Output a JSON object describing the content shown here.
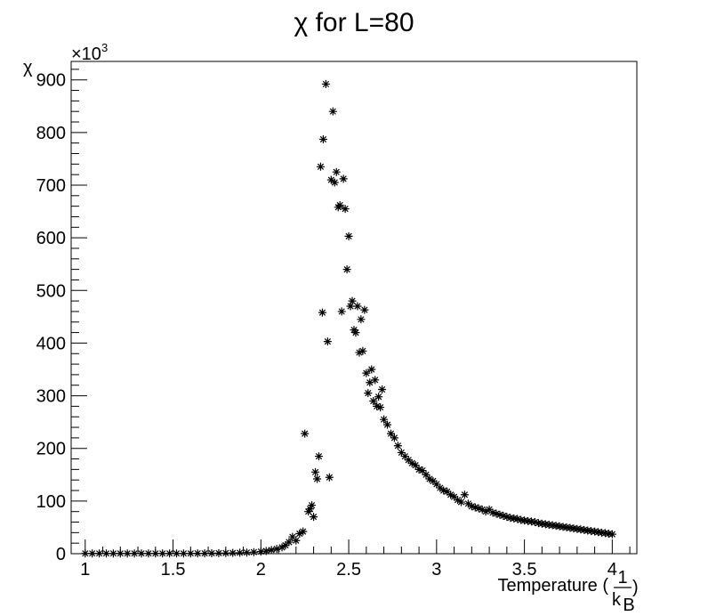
{
  "chart_data": {
    "type": "scatter",
    "title": "χ for L=80",
    "xlabel": "Temperature (",
    "xlabel_fraction": {
      "numerator": "1",
      "denominator": "k",
      "subscript": "B"
    },
    "xlabel_close": ")",
    "ylabel": "χ",
    "y_multiplier": "×10",
    "y_multiplier_exponent": "3",
    "xlim": [
      0.92,
      4.14
    ],
    "ylim": [
      0,
      935
    ],
    "x_ticks": [
      1,
      1.5,
      2,
      2.5,
      3,
      3.5,
      4
    ],
    "x_tick_labels": [
      "1",
      "1.5",
      "2",
      "2.5",
      "3",
      "3.5",
      "4"
    ],
    "y_ticks": [
      0,
      100,
      200,
      300,
      400,
      500,
      600,
      700,
      800,
      900
    ],
    "y_tick_labels": [
      "0",
      "100",
      "200",
      "300",
      "400",
      "500",
      "600",
      "700",
      "800",
      "900"
    ],
    "grid": false,
    "marker": "asterisk",
    "marker_color": "#000000",
    "series": [
      {
        "points": [
          [
            1.0,
            0.5
          ],
          [
            1.04,
            0.5
          ],
          [
            1.08,
            0.5
          ],
          [
            1.12,
            0.5
          ],
          [
            1.16,
            0.5
          ],
          [
            1.2,
            0.5
          ],
          [
            1.24,
            0.5
          ],
          [
            1.28,
            0.5
          ],
          [
            1.32,
            0.5
          ],
          [
            1.36,
            0.5
          ],
          [
            1.4,
            0.5
          ],
          [
            1.44,
            0.5
          ],
          [
            1.48,
            0.5
          ],
          [
            1.52,
            0.5
          ],
          [
            1.56,
            0.5
          ],
          [
            1.6,
            0.5
          ],
          [
            1.64,
            0.6
          ],
          [
            1.68,
            0.7
          ],
          [
            1.72,
            0.8
          ],
          [
            1.76,
            1.0
          ],
          [
            1.8,
            1.2
          ],
          [
            1.84,
            1.5
          ],
          [
            1.88,
            1.8
          ],
          [
            1.92,
            2.2
          ],
          [
            1.96,
            3
          ],
          [
            2.0,
            4
          ],
          [
            2.03,
            5
          ],
          [
            2.06,
            7
          ],
          [
            2.09,
            9
          ],
          [
            2.12,
            12
          ],
          [
            2.14,
            16
          ],
          [
            2.16,
            22
          ],
          [
            2.18,
            32
          ],
          [
            2.2,
            25
          ],
          [
            2.22,
            38
          ],
          [
            2.24,
            42
          ],
          [
            2.25,
            228
          ],
          [
            2.27,
            80
          ],
          [
            2.28,
            85
          ],
          [
            2.29,
            92
          ],
          [
            2.3,
            70
          ],
          [
            2.31,
            155
          ],
          [
            2.32,
            142
          ],
          [
            2.33,
            185
          ],
          [
            2.34,
            735
          ],
          [
            2.35,
            458
          ],
          [
            2.355,
            787
          ],
          [
            2.37,
            892
          ],
          [
            2.38,
            403
          ],
          [
            2.39,
            145
          ],
          [
            2.4,
            710
          ],
          [
            2.41,
            840
          ],
          [
            2.42,
            705
          ],
          [
            2.43,
            725
          ],
          [
            2.44,
            658
          ],
          [
            2.45,
            662
          ],
          [
            2.46,
            460
          ],
          [
            2.47,
            712
          ],
          [
            2.48,
            655
          ],
          [
            2.49,
            540
          ],
          [
            2.5,
            603
          ],
          [
            2.51,
            470
          ],
          [
            2.52,
            480
          ],
          [
            2.53,
            425
          ],
          [
            2.54,
            420
          ],
          [
            2.55,
            470
          ],
          [
            2.56,
            382
          ],
          [
            2.57,
            445
          ],
          [
            2.58,
            385
          ],
          [
            2.59,
            463
          ],
          [
            2.6,
            343
          ],
          [
            2.61,
            305
          ],
          [
            2.62,
            325
          ],
          [
            2.63,
            350
          ],
          [
            2.64,
            290
          ],
          [
            2.65,
            330
          ],
          [
            2.66,
            280
          ],
          [
            2.67,
            298
          ],
          [
            2.68,
            278
          ],
          [
            2.69,
            312
          ],
          [
            2.7,
            255
          ],
          [
            2.72,
            245
          ],
          [
            2.74,
            228
          ],
          [
            2.76,
            220
          ],
          [
            2.78,
            205
          ],
          [
            2.8,
            192
          ],
          [
            2.82,
            185
          ],
          [
            2.84,
            178
          ],
          [
            2.86,
            172
          ],
          [
            2.88,
            168
          ],
          [
            2.9,
            160
          ],
          [
            2.92,
            158
          ],
          [
            2.94,
            150
          ],
          [
            2.96,
            142
          ],
          [
            2.98,
            138
          ],
          [
            3.0,
            132
          ],
          [
            3.02,
            125
          ],
          [
            3.04,
            120
          ],
          [
            3.06,
            118
          ],
          [
            3.08,
            112
          ],
          [
            3.1,
            108
          ],
          [
            3.12,
            102
          ],
          [
            3.14,
            98
          ],
          [
            3.16,
            112
          ],
          [
            3.18,
            95
          ],
          [
            3.2,
            90
          ],
          [
            3.22,
            88
          ],
          [
            3.24,
            86
          ],
          [
            3.26,
            84
          ],
          [
            3.28,
            80
          ],
          [
            3.3,
            84
          ],
          [
            3.32,
            78
          ],
          [
            3.34,
            76
          ],
          [
            3.36,
            74
          ],
          [
            3.38,
            72
          ],
          [
            3.4,
            70
          ],
          [
            3.42,
            68
          ],
          [
            3.44,
            67
          ],
          [
            3.46,
            66
          ],
          [
            3.48,
            64
          ],
          [
            3.5,
            63
          ],
          [
            3.52,
            62
          ],
          [
            3.54,
            61
          ],
          [
            3.56,
            60
          ],
          [
            3.58,
            58
          ],
          [
            3.6,
            57
          ],
          [
            3.62,
            56
          ],
          [
            3.64,
            55
          ],
          [
            3.66,
            54
          ],
          [
            3.68,
            53
          ],
          [
            3.7,
            52
          ],
          [
            3.72,
            51
          ],
          [
            3.74,
            50
          ],
          [
            3.76,
            49
          ],
          [
            3.78,
            48
          ],
          [
            3.8,
            47
          ],
          [
            3.82,
            46
          ],
          [
            3.84,
            45
          ],
          [
            3.86,
            44
          ],
          [
            3.88,
            43
          ],
          [
            3.9,
            42
          ],
          [
            3.92,
            41
          ],
          [
            3.94,
            40
          ],
          [
            3.96,
            39
          ],
          [
            3.98,
            38
          ],
          [
            4.0,
            37
          ]
        ]
      }
    ]
  }
}
